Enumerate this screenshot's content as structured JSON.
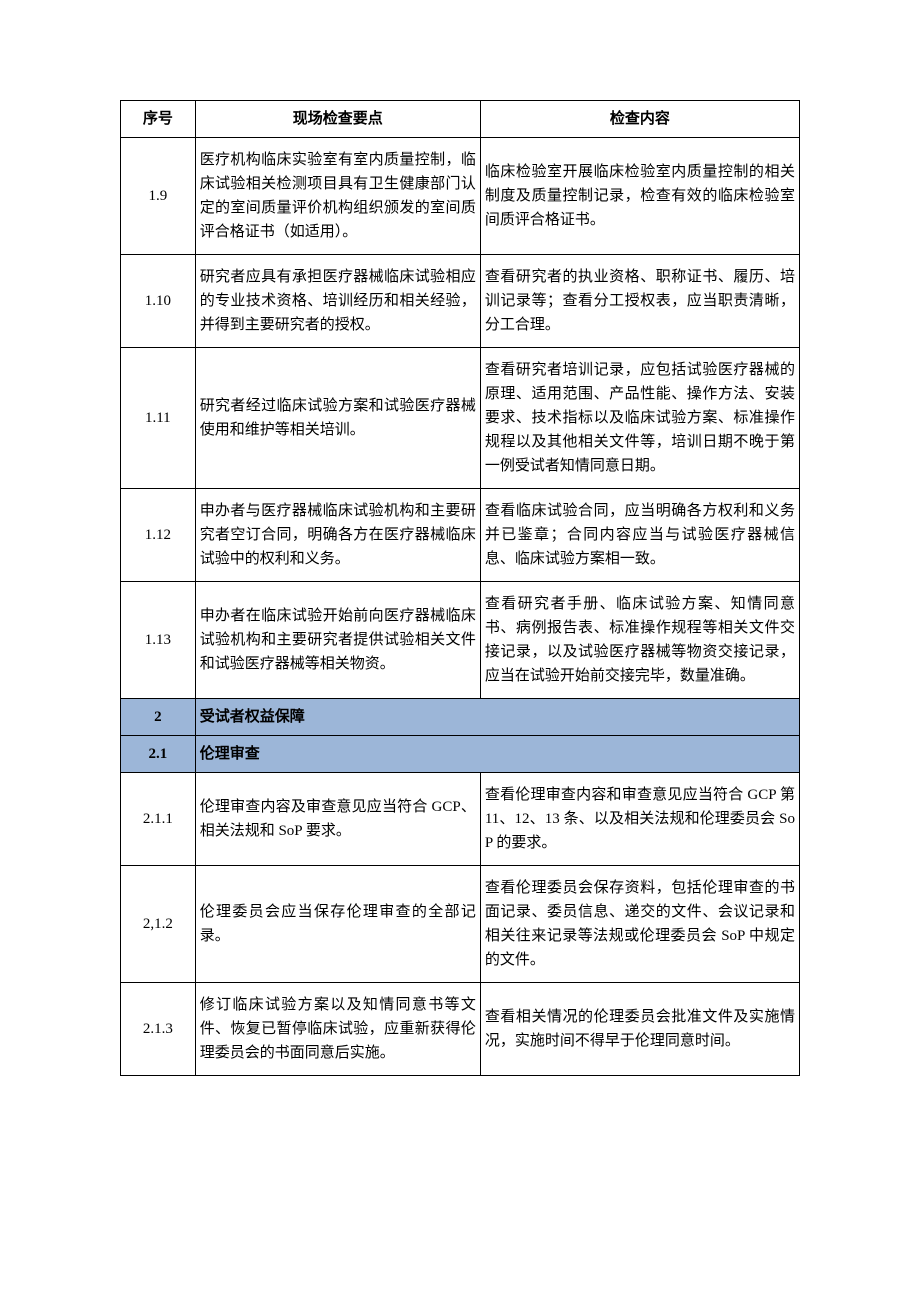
{
  "table": {
    "headers": {
      "seq": "序号",
      "point": "现场检查要点",
      "content": "检查内容"
    },
    "rows": [
      {
        "type": "normal",
        "seq": "1.9",
        "point": "医疗机构临床实验室有室内质量控制，临床试验相关检测项目具有卫生健康部门认定的室间质量评价机构组织颁发的室间质评合格证书（如适用）。",
        "content": "临床检验室开展临床检验室内质量控制的相关制度及质量控制记录，检查有效的临床检验室间质评合格证书。"
      },
      {
        "type": "normal",
        "seq": "1.10",
        "point": "研究者应具有承担医疗器械临床试验相应的专业技术资格、培训经历和相关经验，并得到主要研究者的授权。",
        "content": "查看研究者的执业资格、职称证书、履历、培训记录等；查看分工授权表，应当职责清晰，分工合理。"
      },
      {
        "type": "normal",
        "seq": "1.11",
        "point": "研究者经过临床试验方案和试验医疗器械使用和维护等相关培训。",
        "content": "查看研究者培训记录，应包括试验医疗器械的原理、适用范围、产品性能、操作方法、安装要求、技术指标以及临床试验方案、标准操作规程以及其他相关文件等，培训日期不晚于第一例受试者知情同意日期。"
      },
      {
        "type": "normal",
        "seq": "1.12",
        "point": "申办者与医疗器械临床试验机构和主要研究者空订合同，明确各方在医疗器械临床试验中的权利和义务。",
        "content": "查看临床试验合同，应当明确各方权利和义务并已鉴章；合同内容应当与试验医疗器械信息、临床试验方案相一致。"
      },
      {
        "type": "normal",
        "seq": "1.13",
        "point": "申办者在临床试验开始前向医疗器械临床试验机构和主要研究者提供试验相关文件和试验医疗器械等相关物资。",
        "content": "查看研究者手册、临床试验方案、知情同意书、病例报告表、标准操作规程等相关文件交接记录，以及试验医疗器械等物资交接记录，应当在试验开始前交接完毕，数量准确。"
      },
      {
        "type": "section",
        "seq": "2",
        "heading": "受试者权益保障"
      },
      {
        "type": "subsection",
        "seq": "2.1",
        "heading": "伦理审查"
      },
      {
        "type": "normal",
        "seq": "2.1.1",
        "point": "伦理审查内容及审查意见应当符合 GCP、相关法规和 SoP 要求。",
        "content": "查看伦理审查内容和审查意见应当符合 GCP 第 11、12、13 条、以及相关法规和伦理委员会 SoP 的要求。"
      },
      {
        "type": "normal",
        "seq": "2,1.2",
        "point": "伦理委员会应当保存伦理审查的全部记录。",
        "content": "查看伦理委员会保存资料，包括伦理审查的书面记录、委员信息、递交的文件、会议记录和相关往来记录等法规或伦理委员会 SoP 中规定的文件。"
      },
      {
        "type": "normal",
        "seq": "2.1.3",
        "point": "修订临床试验方案以及知情同意书等文件、恢复已暂停临床试验，应重新获得伦理委员会的书面同意后实施。",
        "content": "查看相关情况的伦理委员会批准文件及实施情况，实施时间不得早于伦理同意时间。"
      }
    ]
  }
}
